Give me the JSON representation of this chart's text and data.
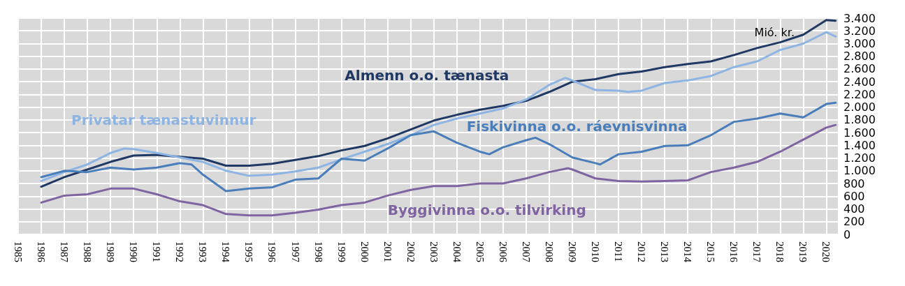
{
  "chart_data": {
    "type": "line",
    "ylabel": "Mió. kr.",
    "xlim": [
      1985,
      2020.5
    ],
    "xticks": [
      1985,
      1986,
      1987,
      1988,
      1989,
      1990,
      1991,
      1992,
      1993,
      1994,
      1995,
      1996,
      1997,
      1998,
      1999,
      2000,
      2001,
      2002,
      2003,
      2004,
      2005,
      2006,
      2007,
      2008,
      2009,
      2010,
      2011,
      2012,
      2013,
      2014,
      2015,
      2016,
      2017,
      2018,
      2019,
      2020
    ],
    "ylim": [
      0,
      3400
    ],
    "yticks": [
      0,
      200,
      400,
      600,
      800,
      {
        "value": 1000,
        "label": "1.000"
      },
      {
        "value": 1200,
        "label": "1.200"
      },
      {
        "value": 1400,
        "label": "1.400"
      },
      {
        "value": 1600,
        "label": "1.600"
      },
      {
        "value": 1800,
        "label": "1.800"
      },
      {
        "value": 2000,
        "label": "2.000"
      },
      {
        "value": 2200,
        "label": "2.200"
      },
      {
        "value": 2400,
        "label": "2.400"
      },
      {
        "value": 2600,
        "label": "2.600"
      },
      {
        "value": 2800,
        "label": "2.800"
      },
      {
        "value": 3000,
        "label": "3.000"
      },
      {
        "value": 3200,
        "label": "3.200"
      },
      {
        "value": 3400,
        "label": "3.400"
      }
    ],
    "grid": true,
    "legend": false,
    "marker": "none",
    "line_style": "solid",
    "series": [
      {
        "name": "Almenn o.o. tænasta",
        "color": "#1f3864",
        "x": [
          1986,
          1987,
          1988,
          1989,
          1990,
          1991,
          1992,
          1993,
          1994,
          1995,
          1996,
          1997,
          1998,
          1999,
          2000,
          2001,
          2002,
          2003,
          2004,
          2005,
          2006,
          2007,
          2008,
          2009,
          2010,
          2011,
          2012,
          2013,
          2014,
          2015,
          2016,
          2017,
          2018,
          2019,
          2020,
          2020.4
        ],
        "values": [
          750,
          900,
          1020,
          1140,
          1240,
          1250,
          1220,
          1190,
          1080,
          1080,
          1110,
          1170,
          1230,
          1320,
          1390,
          1510,
          1650,
          1790,
          1880,
          1960,
          2020,
          2100,
          2240,
          2400,
          2440,
          2520,
          2560,
          2630,
          2680,
          2720,
          2820,
          2930,
          3020,
          3140,
          3370,
          3360
        ]
      },
      {
        "name": "Privatar tænastuvinnur",
        "color": "#8db4e2",
        "x": [
          1986,
          1987,
          1988,
          1989,
          1989.6,
          1990,
          1991,
          1992,
          1993,
          1994,
          1995,
          1996,
          1997,
          1998,
          1999,
          2000,
          2001,
          2002,
          2003,
          2004,
          2005,
          2006,
          2007,
          2008,
          2008.7,
          2009,
          2010,
          2011,
          2011.4,
          2012,
          2013,
          2014,
          2015,
          2016,
          2017,
          2018,
          2019,
          2020,
          2020.4
        ],
        "values": [
          840,
          980,
          1100,
          1280,
          1350,
          1340,
          1280,
          1210,
          1140,
          1000,
          920,
          940,
          990,
          1050,
          1180,
          1300,
          1420,
          1560,
          1720,
          1820,
          1900,
          1980,
          2120,
          2350,
          2460,
          2420,
          2270,
          2260,
          2240,
          2260,
          2380,
          2420,
          2490,
          2630,
          2720,
          2900,
          3000,
          3180,
          3110
        ]
      },
      {
        "name": "Fiskivinna o.o. ráevnisvinna",
        "color": "#4a7ebb",
        "x": [
          1986,
          1987,
          1988,
          1989,
          1990,
          1991,
          1992,
          1992.5,
          1993,
          1994,
          1995,
          1996,
          1997,
          1998,
          1999,
          2000,
          2001,
          2002,
          2003,
          2004,
          2005,
          2005.4,
          2006,
          2007,
          2007.4,
          2008,
          2009,
          2010,
          2010.2,
          2011,
          2012,
          2013,
          2014,
          2015,
          2016,
          2017,
          2018,
          2019,
          2020,
          2020.4
        ],
        "values": [
          900,
          1000,
          980,
          1050,
          1020,
          1050,
          1120,
          1100,
          940,
          680,
          720,
          740,
          860,
          880,
          1190,
          1160,
          1350,
          1560,
          1620,
          1440,
          1300,
          1260,
          1370,
          1480,
          1520,
          1420,
          1210,
          1120,
          1100,
          1260,
          1300,
          1390,
          1400,
          1560,
          1770,
          1820,
          1900,
          1840,
          2050,
          2070
        ]
      },
      {
        "name": "Byggivinna o.o. tilvirking",
        "color": "#8064a2",
        "x": [
          1986,
          1987,
          1988,
          1989,
          1990,
          1991,
          1992,
          1993,
          1994,
          1995,
          1996,
          1997,
          1998,
          1999,
          2000,
          2001,
          2002,
          2003,
          2004,
          2005,
          2006,
          2007,
          2008,
          2008.8,
          2009,
          2010,
          2011,
          2012,
          2013,
          2014,
          2015,
          2016,
          2017,
          2018,
          2019,
          2020,
          2020.4
        ],
        "values": [
          500,
          610,
          630,
          720,
          720,
          630,
          520,
          460,
          320,
          300,
          300,
          340,
          390,
          460,
          500,
          610,
          700,
          760,
          760,
          800,
          800,
          880,
          980,
          1040,
          1020,
          880,
          840,
          830,
          840,
          850,
          980,
          1050,
          1140,
          1300,
          1490,
          1680,
          1720
        ]
      }
    ]
  }
}
